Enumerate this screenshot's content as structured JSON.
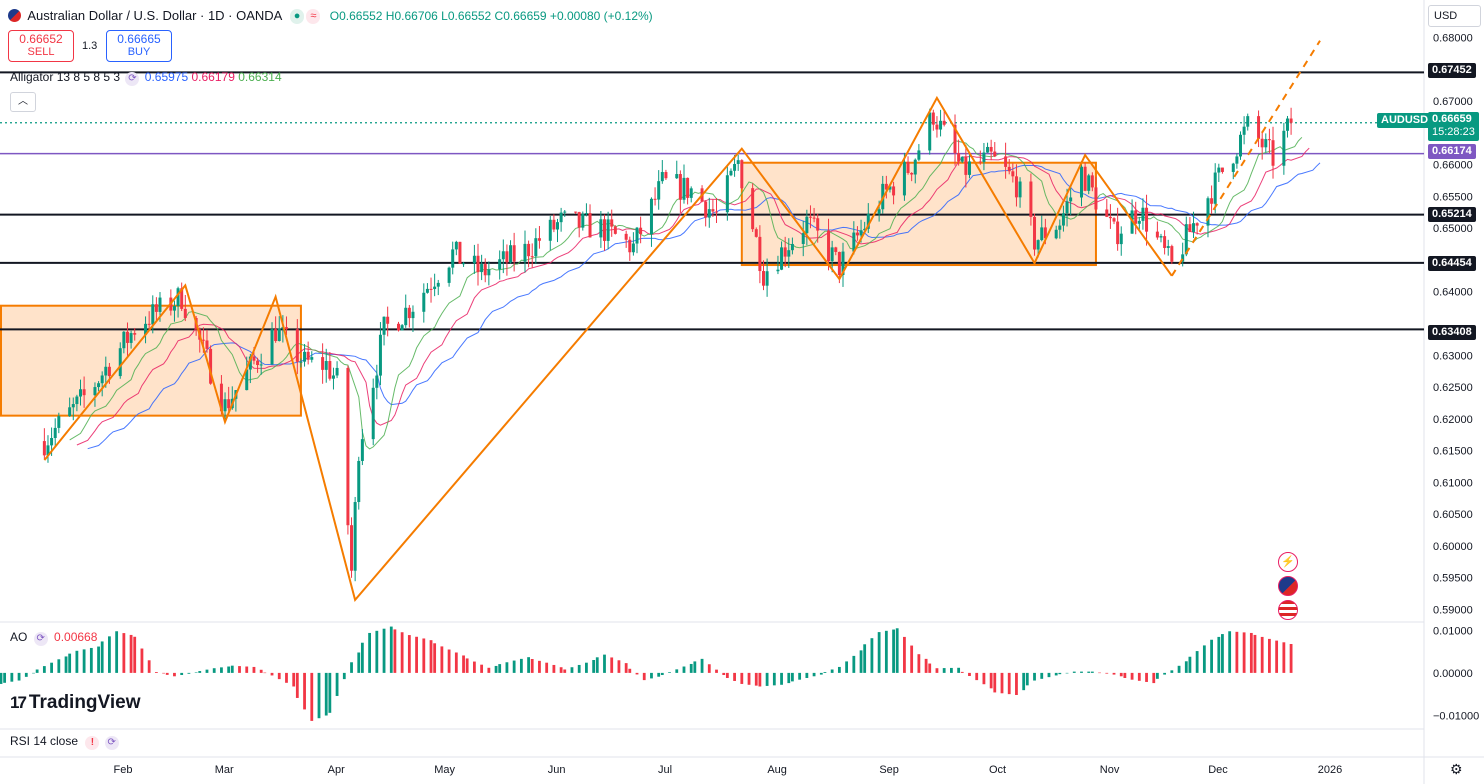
{
  "header": {
    "title": "Australian Dollar / U.S. Dollar · 1D · OANDA",
    "ohlc": "O0.66552 H0.66706 L0.66552 C0.66659 +0.00080 (+0.12%)",
    "currency": "USD",
    "sell_price": "0.66652",
    "sell_label": "SELL",
    "spread": "1.3",
    "buy_price": "0.66665",
    "buy_label": "BUY"
  },
  "indicators": {
    "alligator_label": "Alligator 13 8 5 8 5 3",
    "alligator_jaw": "0.65975",
    "alligator_teeth": "0.66179",
    "alligator_lips": "0.66314",
    "ao_label": "AO",
    "ao_value": "0.00668",
    "rsi_label": "RSI 14 close",
    "rsi_warning": "!"
  },
  "price_tags": {
    "symbol": "AUDUSD",
    "last_price": "0.66659",
    "countdown": "15:28:23",
    "jaw_level": "0.66174"
  },
  "horizontal_levels": [
    "0.67452",
    "0.65214",
    "0.64454",
    "0.63408"
  ],
  "price_axis_labels": [
    "0.68000",
    "0.67000",
    "0.66000",
    "0.65500",
    "0.65000",
    "0.64000",
    "0.63000",
    "0.62500",
    "0.62000",
    "0.61500",
    "0.61000",
    "0.60500",
    "0.60000",
    "0.59500",
    "0.59000"
  ],
  "ao_axis_labels": [
    "0.01000",
    "0.00000",
    "−0.01000"
  ],
  "time_axis_labels": [
    "Feb",
    "Mar",
    "Apr",
    "May",
    "Jun",
    "Jul",
    "Aug",
    "Sep",
    "Oct",
    "Nov",
    "Dec",
    "2026"
  ],
  "branding": "TradingView",
  "colors": {
    "up": "#089981",
    "down": "#f23645",
    "jaw": "#2962ff",
    "teeth": "#e91e63",
    "lips": "#4caf50",
    "pattern": "#f57c00",
    "level_line": "#131722",
    "jaw_level_line": "#7e57c2",
    "last_price": "#089981"
  },
  "chart_data": {
    "type": "candlestick",
    "title": "Australian Dollar / U.S. Dollar · 1D · OANDA",
    "ylim": [
      0.5885,
      0.6815
    ],
    "horizontal_levels": [
      0.67452,
      0.66174,
      0.65214,
      0.64454,
      0.63408
    ],
    "last_price": 0.66659,
    "price_path": [
      {
        "date": "2025-01-13",
        "close": 0.6165
      },
      {
        "date": "2025-01-25",
        "close": 0.624
      },
      {
        "date": "2025-02-08",
        "close": 0.635
      },
      {
        "date": "2025-02-20",
        "close": 0.6392
      },
      {
        "date": "2025-03-04",
        "close": 0.622
      },
      {
        "date": "2025-03-18",
        "close": 0.634
      },
      {
        "date": "2025-03-26",
        "close": 0.6288
      },
      {
        "date": "2025-04-01",
        "close": 0.6285
      },
      {
        "date": "2025-04-04",
        "close": 0.626
      },
      {
        "date": "2025-04-08",
        "close": 0.596
      },
      {
        "date": "2025-04-10",
        "close": 0.6155
      },
      {
        "date": "2025-04-17",
        "close": 0.634
      },
      {
        "date": "2025-04-25",
        "close": 0.638
      },
      {
        "date": "2025-05-06",
        "close": 0.646
      },
      {
        "date": "2025-05-14",
        "close": 0.643
      },
      {
        "date": "2025-05-25",
        "close": 0.646
      },
      {
        "date": "2025-06-05",
        "close": 0.651
      },
      {
        "date": "2025-06-16",
        "close": 0.65
      },
      {
        "date": "2025-06-25",
        "close": 0.647
      },
      {
        "date": "2025-07-03",
        "close": 0.657
      },
      {
        "date": "2025-07-11",
        "close": 0.656
      },
      {
        "date": "2025-07-18",
        "close": 0.652
      },
      {
        "date": "2025-07-24",
        "close": 0.6605
      },
      {
        "date": "2025-07-31",
        "close": 0.643
      },
      {
        "date": "2025-08-12",
        "close": 0.651
      },
      {
        "date": "2025-08-21",
        "close": 0.644
      },
      {
        "date": "2025-09-02",
        "close": 0.655
      },
      {
        "date": "2025-09-10",
        "close": 0.66
      },
      {
        "date": "2025-09-16",
        "close": 0.668
      },
      {
        "date": "2025-09-24",
        "close": 0.659
      },
      {
        "date": "2025-10-02",
        "close": 0.661
      },
      {
        "date": "2025-10-09",
        "close": 0.657
      },
      {
        "date": "2025-10-14",
        "close": 0.648
      },
      {
        "date": "2025-10-21",
        "close": 0.651
      },
      {
        "date": "2025-10-27",
        "close": 0.659
      },
      {
        "date": "2025-11-05",
        "close": 0.649
      },
      {
        "date": "2025-11-12",
        "close": 0.653
      },
      {
        "date": "2025-11-21",
        "close": 0.644
      },
      {
        "date": "2025-12-01",
        "close": 0.655
      },
      {
        "date": "2025-12-08",
        "close": 0.662
      },
      {
        "date": "2025-12-12",
        "close": 0.666
      },
      {
        "date": "2025-12-19",
        "close": 0.661
      },
      {
        "date": "2025-12-24",
        "close": 0.6666
      }
    ],
    "alligator": [
      {
        "name": "Jaw",
        "period": 13,
        "last": 0.65975
      },
      {
        "name": "Teeth",
        "period": 8,
        "last": 0.66179
      },
      {
        "name": "Lips",
        "period": 5,
        "last": 0.66314
      }
    ],
    "pattern_zigzag": [
      {
        "date": "2025-01-13",
        "price": 0.6135
      },
      {
        "date": "2025-02-21",
        "price": 0.641
      },
      {
        "date": "2025-03-04",
        "price": 0.6195
      },
      {
        "date": "2025-03-18",
        "price": 0.6392
      },
      {
        "date": "2025-04-09",
        "price": 0.5915
      },
      {
        "date": "2025-07-25",
        "price": 0.6625
      },
      {
        "date": "2025-08-21",
        "price": 0.642
      },
      {
        "date": "2025-09-17",
        "price": 0.6705
      },
      {
        "date": "2025-10-14",
        "price": 0.6445
      },
      {
        "date": "2025-10-28",
        "price": 0.6615
      },
      {
        "date": "2025-11-21",
        "price": 0.6425
      },
      {
        "date": "2026-01-01",
        "price": 0.6795
      }
    ],
    "ranges": [
      {
        "from": "2025-01-01",
        "to": "2025-03-25",
        "top": 0.6378,
        "bottom": 0.6205
      },
      {
        "from": "2025-07-25",
        "to": "2025-10-31",
        "top": 0.6603,
        "bottom": 0.6442
      }
    ],
    "ao": {
      "last": 0.00668,
      "ylim": [
        -0.0125,
        0.0108
      ],
      "values": [
        -0.0026,
        -0.0018,
        0.0008,
        0.0032,
        0.0052,
        0.0062,
        0.0098,
        0.0085,
        0.0002,
        -0.0008,
        0.0001,
        0.0011,
        0.0017,
        0.0014,
        -0.0006,
        -0.0032,
        -0.0113,
        -0.0094,
        0.0025,
        0.0094,
        0.0109,
        0.0089,
        0.0077,
        0.0055,
        0.0034,
        0.0012,
        0.0025,
        0.0037,
        0.0024,
        0.0008,
        0.0024,
        0.0043,
        0.0023,
        -0.0017,
        -0.0005,
        0.0015,
        0.0033,
        -0.0005,
        -0.0026,
        -0.0032,
        -0.0028,
        -0.0016,
        -0.0004,
        0.0014,
        0.0053,
        0.0096,
        0.0105,
        0.0044,
        0.0011,
        0.0012,
        -0.0017,
        -0.0046,
        -0.0052,
        -0.0018,
        -0.0006,
        0.0003,
        0.0003,
        -0.0004,
        -0.0016,
        -0.0024,
        0.0006,
        0.0038,
        0.0078,
        0.0098,
        0.0094,
        0.008,
        0.0068
      ]
    }
  }
}
